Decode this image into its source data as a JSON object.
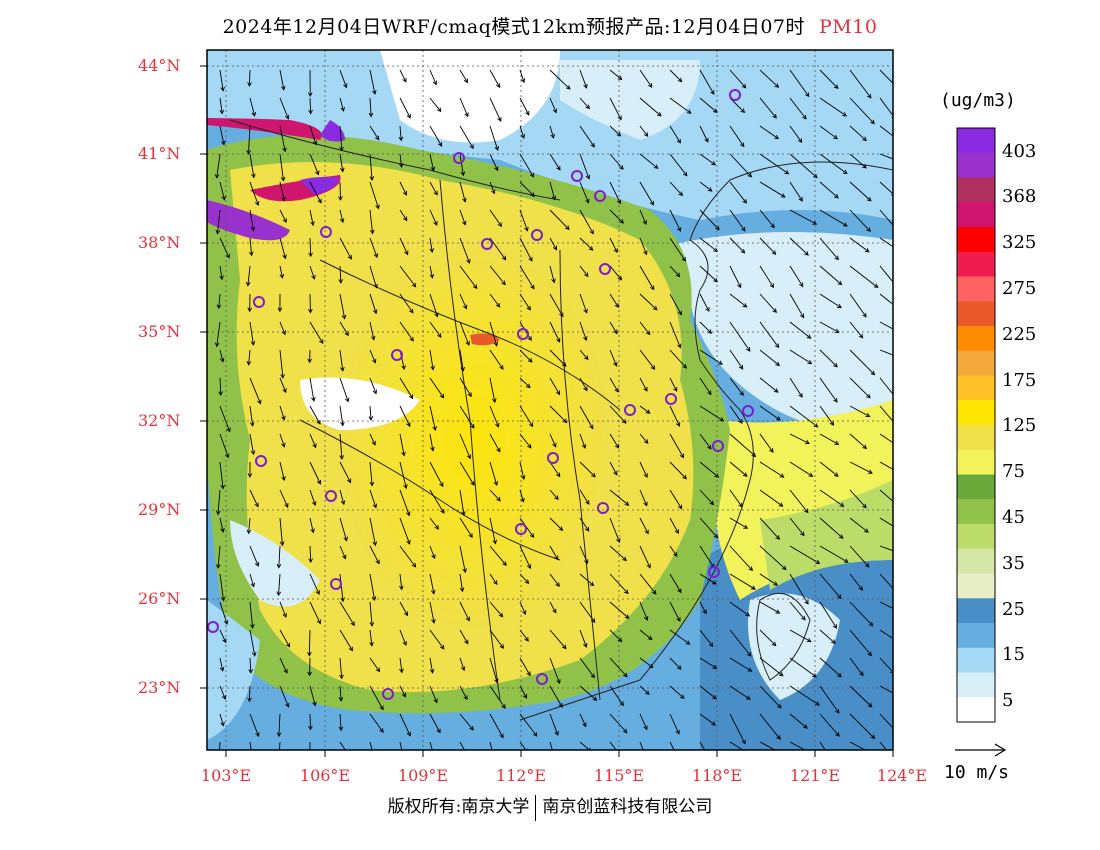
{
  "title": {
    "main": "2024年12月04日WRF/cmaq模式12km预报产品:12月04日07时",
    "pollutant": "PM10"
  },
  "map": {
    "lat_labels": [
      "44°N",
      "41°N",
      "38°N",
      "35°N",
      "32°N",
      "29°N",
      "26°N",
      "23°N"
    ],
    "lon_labels": [
      "103°E",
      "106°E",
      "109°E",
      "112°E",
      "115°E",
      "118°E",
      "121°E",
      "124°E"
    ]
  },
  "colorbar": {
    "unit": "(ug/m3)",
    "label_values": [
      "403",
      "368",
      "325",
      "275",
      "225",
      "175",
      "125",
      "75",
      "45",
      "35",
      "25",
      "15",
      "5"
    ],
    "bin_colors": [
      "#8a2be2",
      "#9932cc",
      "#b03060",
      "#d0156f",
      "#ff0000",
      "#f01c50",
      "#ff6060",
      "#e85a2a",
      "#ff8c00",
      "#f4a83a",
      "#ffc125",
      "#ffe600",
      "#f0e04a",
      "#f2f25a",
      "#6aa83a",
      "#90c24a",
      "#bcdc6a",
      "#d6e6a6",
      "#e8eec6",
      "#4a8ec8",
      "#66aee0",
      "#a4d8f4",
      "#d8eef8",
      "#ffffff"
    ]
  },
  "wind_reference": {
    "label": "10 m/s"
  },
  "copyright": {
    "left": "版权所有:南京大学",
    "right": "南京创蓝科技有限公司"
  }
}
